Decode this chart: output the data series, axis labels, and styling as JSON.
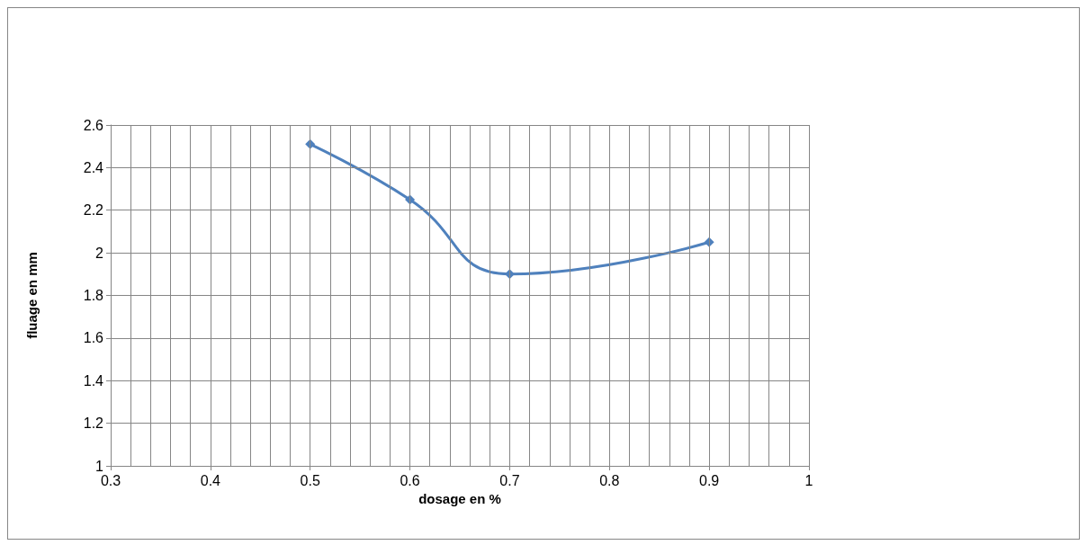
{
  "chart_data": {
    "type": "line",
    "xlabel": "dosage en %",
    "ylabel": "fluage en mm",
    "x": [
      0.5,
      0.6,
      0.7,
      0.9
    ],
    "series": [
      {
        "color": "#4f81bd",
        "values": [
          2.51,
          2.25,
          1.9,
          2.05
        ]
      }
    ],
    "xlim": [
      0.3,
      1
    ],
    "xticks": [
      0.3,
      {
        "value": 0.32,
        "label": null
      },
      {
        "value": 0.34,
        "label": null
      },
      {
        "value": 0.36,
        "label": null
      },
      {
        "value": 0.38,
        "label": null
      },
      0.4,
      {
        "value": 0.42,
        "label": null
      },
      {
        "value": 0.44,
        "label": null
      },
      {
        "value": 0.46,
        "label": null
      },
      {
        "value": 0.48,
        "label": null
      },
      0.5,
      {
        "value": 0.52,
        "label": null
      },
      {
        "value": 0.54,
        "label": null
      },
      {
        "value": 0.56,
        "label": null
      },
      {
        "value": 0.58,
        "label": null
      },
      0.6,
      {
        "value": 0.62,
        "label": null
      },
      {
        "value": 0.64,
        "label": null
      },
      {
        "value": 0.66,
        "label": null
      },
      {
        "value": 0.68,
        "label": null
      },
      0.7,
      {
        "value": 0.72,
        "label": null
      },
      {
        "value": 0.74,
        "label": null
      },
      {
        "value": 0.76,
        "label": null
      },
      {
        "value": 0.78,
        "label": null
      },
      0.8,
      {
        "value": 0.82,
        "label": null
      },
      {
        "value": 0.84,
        "label": null
      },
      {
        "value": 0.86,
        "label": null
      },
      {
        "value": 0.88,
        "label": null
      },
      0.9,
      {
        "value": 0.92,
        "label": null
      },
      {
        "value": 0.94,
        "label": null
      },
      {
        "value": 0.96,
        "label": null
      },
      {
        "value": 0.98,
        "label": null
      },
      1
    ],
    "ylim": [
      1,
      2.6
    ],
    "yticks": [
      1,
      1.2,
      1.4,
      1.6,
      1.8,
      2,
      2.2,
      2.4,
      2.6
    ],
    "grid": true,
    "marker": "diamond",
    "line_style": "solid"
  }
}
